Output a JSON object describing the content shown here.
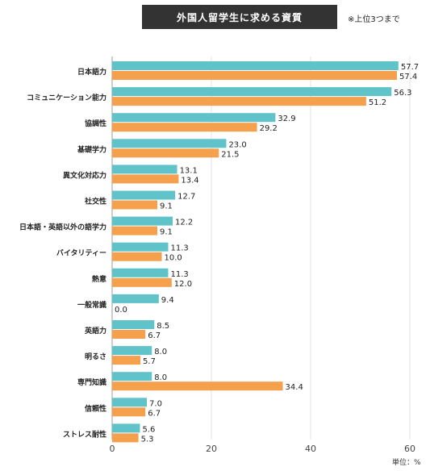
{
  "title": "外国人留学生に求める資質",
  "note": "※上位3つまで",
  "unit_label": "単位：%",
  "colors": {
    "series1": "#5fc3c9",
    "series2": "#f5a04c",
    "grid": "#e3e3e3",
    "axis": "#999999",
    "text": "#222222"
  },
  "chart_data": {
    "type": "bar",
    "orientation": "horizontal",
    "categories": [
      "日本語力",
      "コミュニケーション能力",
      "協調性",
      "基礎学力",
      "異文化対応力",
      "社交性",
      "日本語・英語以外の語学力",
      "バイタリティー",
      "熱意",
      "一般常識",
      "英語力",
      "明るさ",
      "専門知識",
      "信頼性",
      "ストレス耐性"
    ],
    "series": [
      {
        "values": [
          57.7,
          56.3,
          32.9,
          23.0,
          13.1,
          12.7,
          12.2,
          11.3,
          11.3,
          9.4,
          8.5,
          8.0,
          8.0,
          7.0,
          5.6
        ]
      },
      {
        "values": [
          57.4,
          51.2,
          29.2,
          21.5,
          13.4,
          9.1,
          9.1,
          10.0,
          12.0,
          0.0,
          6.7,
          5.7,
          34.4,
          6.7,
          5.3
        ]
      }
    ],
    "xlim": [
      0,
      60
    ],
    "xticks": [
      0,
      20,
      40,
      60
    ],
    "grid": true,
    "legend": "none"
  }
}
